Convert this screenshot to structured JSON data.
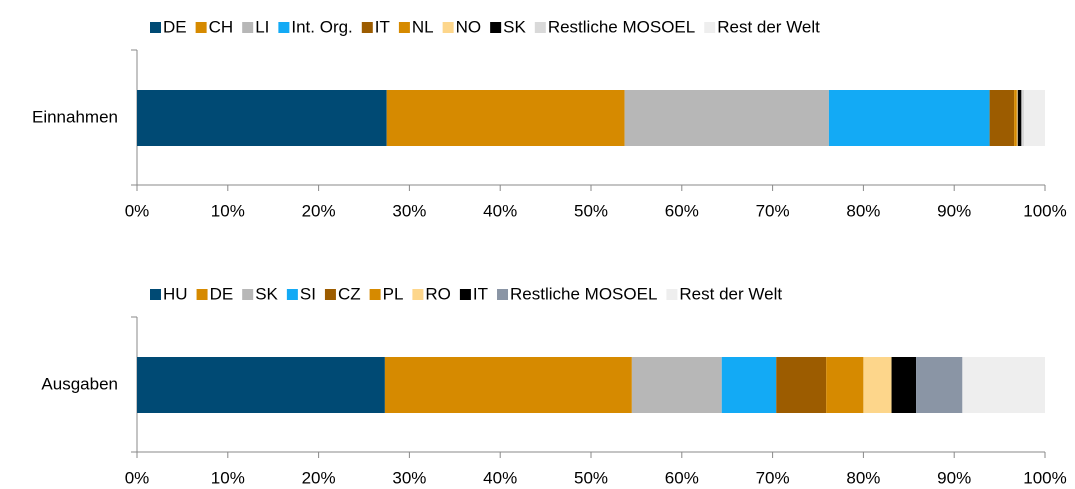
{
  "chart_data": [
    {
      "type": "bar",
      "orientation": "horizontal",
      "stacked": true,
      "categories": [
        "Einnahmen"
      ],
      "series": [
        {
          "name": "DE",
          "color": "#004a74",
          "values": [
            27.5
          ]
        },
        {
          "name": "CH",
          "color": "#d68a00",
          "values": [
            26.2
          ]
        },
        {
          "name": "LI",
          "color": "#b7b7b7",
          "values": [
            22.5
          ]
        },
        {
          "name": "Int. Org.",
          "color": "#13aaf5",
          "values": [
            17.7
          ]
        },
        {
          "name": "IT",
          "color": "#9c5c00",
          "values": [
            2.7
          ]
        },
        {
          "name": "NL",
          "color": "#d68a00",
          "values": [
            0.3
          ]
        },
        {
          "name": "NO",
          "color": "#fdd68b",
          "values": [
            0.1
          ]
        },
        {
          "name": "SK",
          "color": "#000000",
          "values": [
            0.4
          ]
        },
        {
          "name": "Restliche MOSOEL",
          "color": "#d9d9d9",
          "values": [
            0.3
          ]
        },
        {
          "name": "Rest der Welt",
          "color": "#eeeeee",
          "values": [
            2.3
          ]
        }
      ],
      "xlim": [
        0,
        100
      ],
      "xticks": [
        {
          "value": 0,
          "label": "0%"
        },
        {
          "value": 10,
          "label": "10%"
        },
        {
          "value": 20,
          "label": "20%"
        },
        {
          "value": 30,
          "label": "30%"
        },
        {
          "value": 40,
          "label": "40%"
        },
        {
          "value": 50,
          "label": "50%"
        },
        {
          "value": 60,
          "label": "60%"
        },
        {
          "value": 70,
          "label": "70%"
        },
        {
          "value": 80,
          "label": "80%"
        },
        {
          "value": 90,
          "label": "90%"
        },
        {
          "value": 100,
          "label": "100%"
        }
      ],
      "legend": "top"
    },
    {
      "type": "bar",
      "orientation": "horizontal",
      "stacked": true,
      "categories": [
        "Ausgaben"
      ],
      "series": [
        {
          "name": "HU",
          "color": "#004a74",
          "values": [
            27.3
          ]
        },
        {
          "name": "DE",
          "color": "#d68a00",
          "values": [
            27.2
          ]
        },
        {
          "name": "SK",
          "color": "#b7b7b7",
          "values": [
            9.9
          ]
        },
        {
          "name": "SI",
          "color": "#13aaf5",
          "values": [
            6.0
          ]
        },
        {
          "name": "CZ",
          "color": "#9c5c00",
          "values": [
            5.5
          ]
        },
        {
          "name": "PL",
          "color": "#d68a00",
          "values": [
            4.1
          ]
        },
        {
          "name": "RO",
          "color": "#fdd68b",
          "values": [
            3.1
          ]
        },
        {
          "name": "IT",
          "color": "#000000",
          "values": [
            2.7
          ]
        },
        {
          "name": "Restliche MOSOEL",
          "color": "#8a95a5",
          "values": [
            5.1
          ]
        },
        {
          "name": "Rest der Welt",
          "color": "#eeeeee",
          "values": [
            9.1
          ]
        }
      ],
      "xlim": [
        0,
        100
      ],
      "xticks": [
        {
          "value": 0,
          "label": "0%"
        },
        {
          "value": 10,
          "label": "10%"
        },
        {
          "value": 20,
          "label": "20%"
        },
        {
          "value": 30,
          "label": "30%"
        },
        {
          "value": 40,
          "label": "40%"
        },
        {
          "value": 50,
          "label": "50%"
        },
        {
          "value": 60,
          "label": "60%"
        },
        {
          "value": 70,
          "label": "70%"
        },
        {
          "value": 80,
          "label": "80%"
        },
        {
          "value": 90,
          "label": "90%"
        },
        {
          "value": 100,
          "label": "100%"
        }
      ],
      "legend": "top"
    }
  ]
}
